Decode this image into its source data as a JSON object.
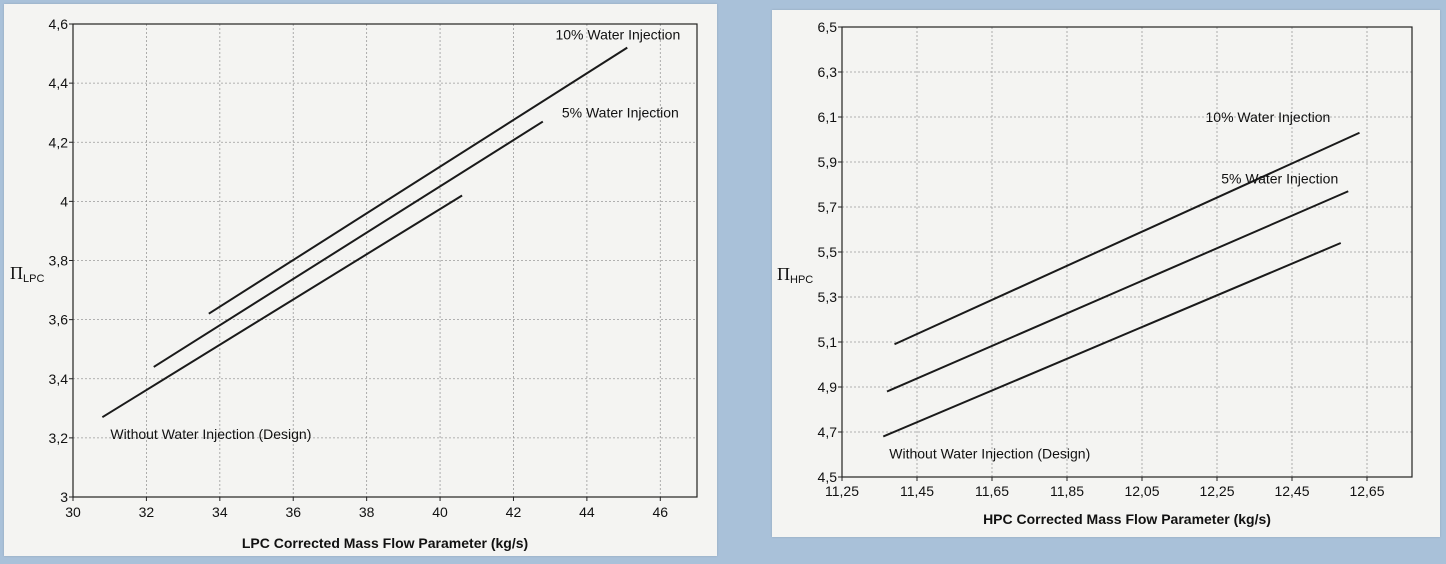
{
  "chart_data": [
    {
      "type": "line",
      "xlabel": "LPC Corrected Mass Flow Parameter (kg/s)",
      "ylabel_symbol": "Π",
      "ylabel_subscript": "LPC",
      "xlim": [
        30,
        47
      ],
      "ylim": [
        3,
        4.6
      ],
      "xticks": [
        "30",
        "32",
        "34",
        "36",
        "38",
        "40",
        "42",
        "44",
        "46"
      ],
      "yticks": [
        "3",
        "3,2",
        "3,4",
        "3,6",
        "3,8",
        "4",
        "4,2",
        "4,4",
        "4,6"
      ],
      "grid": true,
      "annotations": [
        "10% Water Injection",
        "5% Water Injection",
        "Without Water Injection (Design)"
      ],
      "series": [
        {
          "name": "10% Water Injection",
          "x": [
            33.7,
            45.1
          ],
          "y": [
            3.62,
            4.52
          ]
        },
        {
          "name": "5% Water Injection",
          "x": [
            32.2,
            42.8
          ],
          "y": [
            3.44,
            4.27
          ]
        },
        {
          "name": "Without Water Injection (Design)",
          "x": [
            30.8,
            40.6
          ],
          "y": [
            3.27,
            4.02
          ]
        }
      ]
    },
    {
      "type": "line",
      "xlabel": "HPC Corrected Mass Flow Parameter (kg/s)",
      "ylabel_symbol": "Π",
      "ylabel_subscript": "HPC",
      "xlim": [
        11.25,
        12.77
      ],
      "ylim": [
        4.5,
        6.5
      ],
      "xticks": [
        "11,25",
        "11,45",
        "11,65",
        "11,85",
        "12,05",
        "12,25",
        "12,45",
        "12,65"
      ],
      "yticks": [
        "4,5",
        "4,7",
        "4,9",
        "5,1",
        "5,3",
        "5,5",
        "5,7",
        "5,9",
        "6,1",
        "6,3",
        "6,5"
      ],
      "grid": true,
      "annotations": [
        "10% Water Injection",
        "5% Water Injection",
        "Without Water Injection (Design)"
      ],
      "series": [
        {
          "name": "10% Water Injection",
          "x": [
            11.39,
            12.63
          ],
          "y": [
            5.09,
            6.03
          ]
        },
        {
          "name": "5% Water Injection",
          "x": [
            11.37,
            12.6
          ],
          "y": [
            4.88,
            5.77
          ]
        },
        {
          "name": "Without Water Injection (Design)",
          "x": [
            11.36,
            12.58
          ],
          "y": [
            4.68,
            5.54
          ]
        }
      ]
    }
  ]
}
